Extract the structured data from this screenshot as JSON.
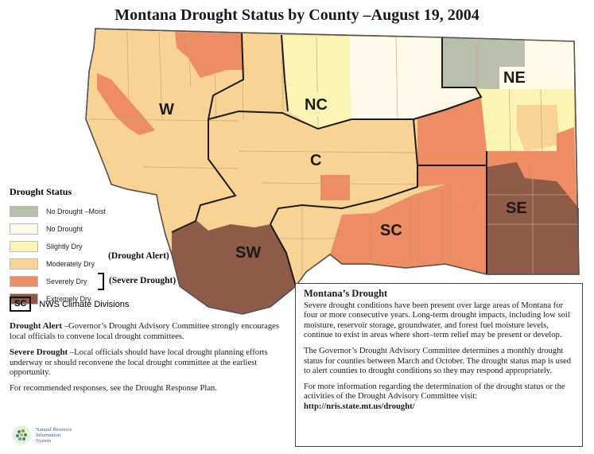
{
  "title": "Montana Drought Status by County –August 19, 2004",
  "legend": {
    "title": "Drought Status",
    "items": [
      {
        "label": "No Drought –Moist",
        "color": "#b9bfaa"
      },
      {
        "label": "No Drought",
        "color": "#fdfbe8"
      },
      {
        "label": "Slightly Dry",
        "color": "#fcf4b4"
      },
      {
        "label": "Moderately Dry",
        "color": "#f9d394"
      },
      {
        "label": "Severely Dry",
        "color": "#ee8c63"
      },
      {
        "label": "Extremely Dry",
        "color": "#8e5b48"
      }
    ],
    "drought_alert_tag": "(Drought Alert)",
    "severe_drought_tag": "(Severe Drought)",
    "divisions_key": "SC",
    "divisions_label": "NWS Climate Divisions"
  },
  "divisions": [
    {
      "code": "W",
      "status": "Moderately Dry"
    },
    {
      "code": "NC",
      "status": "Slightly Dry"
    },
    {
      "code": "NE",
      "status": "No Drought"
    },
    {
      "code": "C",
      "status": "Moderately Dry"
    },
    {
      "code": "SW",
      "status": "Extremely Dry"
    },
    {
      "code": "SC",
      "status": "Severely Dry"
    },
    {
      "code": "SE",
      "status": "Extremely Dry"
    }
  ],
  "notes": {
    "drought_alert_term": "Drought Alert",
    "drought_alert_text": " –Governor’s Drought Advisory Committee strongly encourages local officials to convene local drought committees.",
    "severe_drought_term": "Severe Drought",
    "severe_drought_text": " –Local officials should have local drought planning efforts underway or should reconvene the local drought committee at the earliest opportunity.",
    "recommend": "For recommended responses, see the Drought Response Plan."
  },
  "logo": {
    "line1": "Natural Resource",
    "line2": "Information",
    "line3": "System"
  },
  "infobox": {
    "title": "Montana’s Drought",
    "p1": "Severe drought conditions have been present over large areas of Montana for four or more consecutive years. Long-term drought impacts, including low soil moisture, reservoir storage, groundwater, and forest fuel moisture levels, continue to exist in areas where short–term relief may be present or develop.",
    "p2": "The Governor’s Drought Advisory Committee determines a monthly drought status for counties between March and October. The drought status map is used to alert counties to drought conditions so they may respond appropriately.",
    "p3": "For more information regarding the determination of the drought status or the activities of the Drought Advisory Committee visit:",
    "url": "http://nris.state.mt.us/drought/"
  }
}
